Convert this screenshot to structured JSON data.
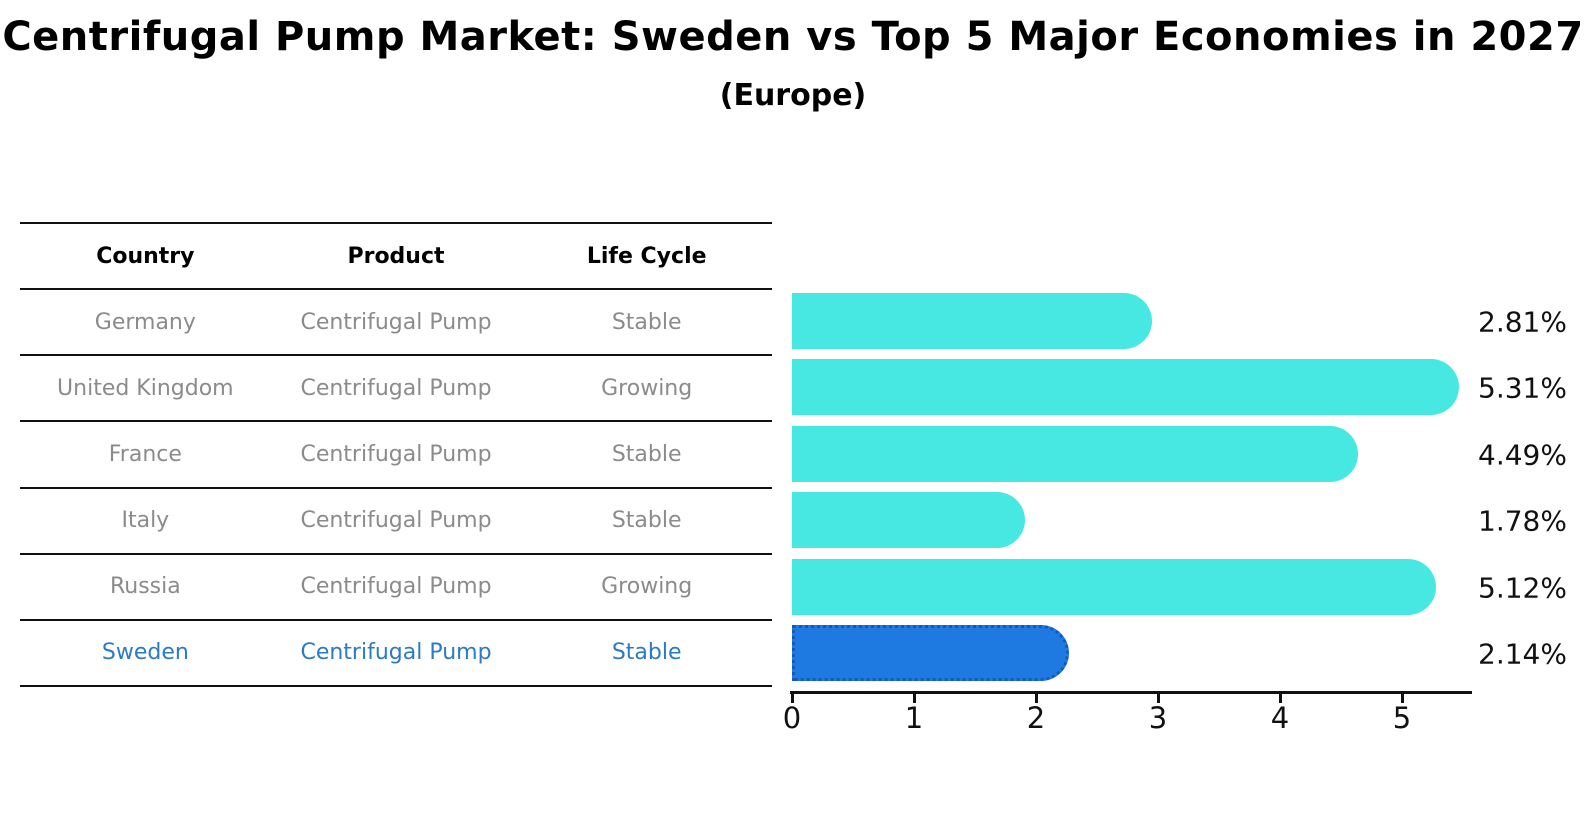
{
  "title": "Centrifugal Pump Market: Sweden vs Top 5 Major Economies in 2027",
  "subtitle": "(Europe)",
  "table": {
    "headers": [
      "Country",
      "Product",
      "Life Cycle"
    ],
    "rows": [
      {
        "country": "Germany",
        "product": "Centrifugal Pump",
        "life_cycle": "Stable"
      },
      {
        "country": "United Kingdom",
        "product": "Centrifugal Pump",
        "life_cycle": "Growing"
      },
      {
        "country": "France",
        "product": "Centrifugal Pump",
        "life_cycle": "Stable"
      },
      {
        "country": "Italy",
        "product": "Centrifugal Pump",
        "life_cycle": "Stable"
      },
      {
        "country": "Russia",
        "product": "Centrifugal Pump",
        "life_cycle": "Growing"
      },
      {
        "country": "Sweden",
        "product": "Centrifugal Pump",
        "life_cycle": "Stable"
      }
    ],
    "highlight_index": 5
  },
  "chart_data": {
    "type": "bar",
    "orientation": "horizontal",
    "title": "Centrifugal Pump Market: Sweden vs Top 5 Major Economies in 2027",
    "subtitle": "(Europe)",
    "categories": [
      "Germany",
      "United Kingdom",
      "France",
      "Italy",
      "Russia",
      "Sweden"
    ],
    "values": [
      2.81,
      5.31,
      4.49,
      1.78,
      5.12,
      2.14
    ],
    "value_labels": [
      "2.81%",
      "5.31%",
      "4.49%",
      "1.78%",
      "5.12%",
      "2.14%"
    ],
    "xlabel": "",
    "ylabel": "",
    "xlim": [
      0,
      5.5
    ],
    "xticks": [
      "0",
      "1",
      "2",
      "3",
      "4",
      "5"
    ],
    "grid": false,
    "legend": null,
    "highlight_index": 5,
    "bar_color": "#48e8e2",
    "highlight_color": "#1e7ae0",
    "highlight_border_color": "#1459bd"
  },
  "colors": {
    "title_text": "#000000",
    "table_line": "#111111",
    "row_text": "#8b8b8b",
    "header_text": "#000000",
    "highlight_text": "#2b7bc4",
    "axis": "#111111",
    "background": "#ffffff"
  }
}
